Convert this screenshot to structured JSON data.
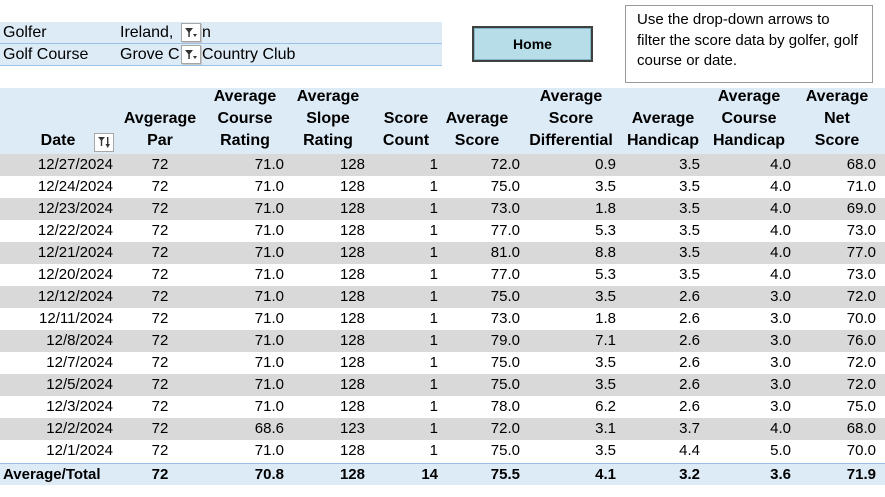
{
  "filters": {
    "golfer": {
      "label": "Golfer",
      "value_part1": "Ireland,",
      "value_part2": "n"
    },
    "course": {
      "label": "Golf Course",
      "value_part1": "Grove C",
      "value_part2": "Country Club"
    }
  },
  "home_button": {
    "label": "Home"
  },
  "note": {
    "text": "Use the drop-down arrows to filter the score data by golfer, golf course or date."
  },
  "table": {
    "headers": {
      "date": [
        "Date"
      ],
      "par": [
        "Avgerage",
        "Par"
      ],
      "course_rating": [
        "Average",
        "Course",
        "Rating"
      ],
      "slope_rating": [
        "Average",
        "Slope",
        "Rating"
      ],
      "score_count": [
        "Score",
        "Count"
      ],
      "average_score": [
        "Average",
        "Score"
      ],
      "score_differential": [
        "Average",
        "Score",
        "Differential"
      ],
      "handicap": [
        "Average",
        "Handicap"
      ],
      "course_handicap": [
        "Average",
        "Course",
        "Handicap"
      ],
      "net_score": [
        "Average",
        "Net",
        "Score"
      ]
    },
    "rows": [
      {
        "date": "12/27/2024",
        "par": "72",
        "course_rating": "71.0",
        "slope_rating": "128",
        "score_count": "1",
        "average_score": "72.0",
        "score_differential": "0.9",
        "handicap": "3.5",
        "course_handicap": "4.0",
        "net_score": "68.0"
      },
      {
        "date": "12/24/2024",
        "par": "72",
        "course_rating": "71.0",
        "slope_rating": "128",
        "score_count": "1",
        "average_score": "75.0",
        "score_differential": "3.5",
        "handicap": "3.5",
        "course_handicap": "4.0",
        "net_score": "71.0"
      },
      {
        "date": "12/23/2024",
        "par": "72",
        "course_rating": "71.0",
        "slope_rating": "128",
        "score_count": "1",
        "average_score": "73.0",
        "score_differential": "1.8",
        "handicap": "3.5",
        "course_handicap": "4.0",
        "net_score": "69.0"
      },
      {
        "date": "12/22/2024",
        "par": "72",
        "course_rating": "71.0",
        "slope_rating": "128",
        "score_count": "1",
        "average_score": "77.0",
        "score_differential": "5.3",
        "handicap": "3.5",
        "course_handicap": "4.0",
        "net_score": "73.0"
      },
      {
        "date": "12/21/2024",
        "par": "72",
        "course_rating": "71.0",
        "slope_rating": "128",
        "score_count": "1",
        "average_score": "81.0",
        "score_differential": "8.8",
        "handicap": "3.5",
        "course_handicap": "4.0",
        "net_score": "77.0"
      },
      {
        "date": "12/20/2024",
        "par": "72",
        "course_rating": "71.0",
        "slope_rating": "128",
        "score_count": "1",
        "average_score": "77.0",
        "score_differential": "5.3",
        "handicap": "3.5",
        "course_handicap": "4.0",
        "net_score": "73.0"
      },
      {
        "date": "12/12/2024",
        "par": "72",
        "course_rating": "71.0",
        "slope_rating": "128",
        "score_count": "1",
        "average_score": "75.0",
        "score_differential": "3.5",
        "handicap": "2.6",
        "course_handicap": "3.0",
        "net_score": "72.0"
      },
      {
        "date": "12/11/2024",
        "par": "72",
        "course_rating": "71.0",
        "slope_rating": "128",
        "score_count": "1",
        "average_score": "73.0",
        "score_differential": "1.8",
        "handicap": "2.6",
        "course_handicap": "3.0",
        "net_score": "70.0"
      },
      {
        "date": "12/8/2024",
        "par": "72",
        "course_rating": "71.0",
        "slope_rating": "128",
        "score_count": "1",
        "average_score": "79.0",
        "score_differential": "7.1",
        "handicap": "2.6",
        "course_handicap": "3.0",
        "net_score": "76.0"
      },
      {
        "date": "12/7/2024",
        "par": "72",
        "course_rating": "71.0",
        "slope_rating": "128",
        "score_count": "1",
        "average_score": "75.0",
        "score_differential": "3.5",
        "handicap": "2.6",
        "course_handicap": "3.0",
        "net_score": "72.0"
      },
      {
        "date": "12/5/2024",
        "par": "72",
        "course_rating": "71.0",
        "slope_rating": "128",
        "score_count": "1",
        "average_score": "75.0",
        "score_differential": "3.5",
        "handicap": "2.6",
        "course_handicap": "3.0",
        "net_score": "72.0"
      },
      {
        "date": "12/3/2024",
        "par": "72",
        "course_rating": "71.0",
        "slope_rating": "128",
        "score_count": "1",
        "average_score": "78.0",
        "score_differential": "6.2",
        "handicap": "2.6",
        "course_handicap": "3.0",
        "net_score": "75.0"
      },
      {
        "date": "12/2/2024",
        "par": "72",
        "course_rating": "68.6",
        "slope_rating": "123",
        "score_count": "1",
        "average_score": "72.0",
        "score_differential": "3.1",
        "handicap": "3.7",
        "course_handicap": "4.0",
        "net_score": "68.0"
      },
      {
        "date": "12/1/2024",
        "par": "72",
        "course_rating": "71.0",
        "slope_rating": "128",
        "score_count": "1",
        "average_score": "75.0",
        "score_differential": "3.5",
        "handicap": "4.4",
        "course_handicap": "5.0",
        "net_score": "70.0"
      }
    ],
    "totals": {
      "label": "Average/Total",
      "par": "72",
      "course_rating": "70.8",
      "slope_rating": "128",
      "score_count": "14",
      "average_score": "75.5",
      "score_differential": "4.1",
      "handicap": "3.2",
      "course_handicap": "3.6",
      "net_score": "71.9"
    }
  },
  "colors": {
    "header_fill": "#ddebf7",
    "band_fill": "#d9d9d9",
    "button_fill": "#b7dde8"
  }
}
